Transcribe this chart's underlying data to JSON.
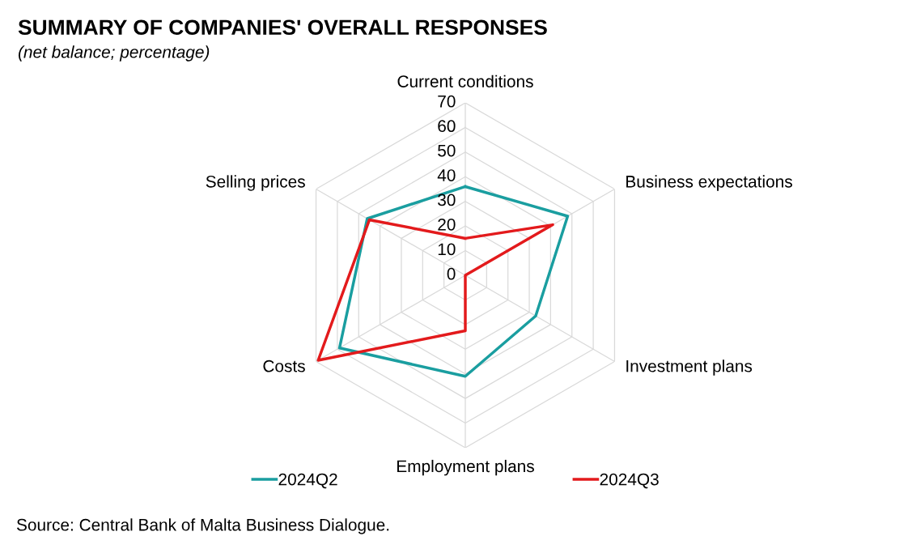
{
  "chart_data": {
    "type": "radar",
    "title": "SUMMARY OF COMPANIES' OVERALL RESPONSES",
    "subtitle": "(net balance; percentage)",
    "categories": [
      "Current conditions",
      "Business expectations",
      "Investment plans",
      "Employment plans",
      "Costs",
      "Selling prices"
    ],
    "series": [
      {
        "name": "2024Q2",
        "color": "#1a9ea0",
        "values": [
          36,
          48,
          33,
          41,
          59,
          46
        ]
      },
      {
        "name": "2024Q3",
        "color": "#e31a1c",
        "values": [
          15,
          41,
          0,
          22.5,
          69,
          45
        ]
      }
    ],
    "ylim": [
      0,
      70
    ],
    "yticks": [
      0,
      10,
      20,
      30,
      40,
      50,
      60,
      70
    ],
    "grid": true,
    "legend": "bottom",
    "annotations": [
      "Source: Central Bank of Malta Business Dialogue."
    ]
  }
}
